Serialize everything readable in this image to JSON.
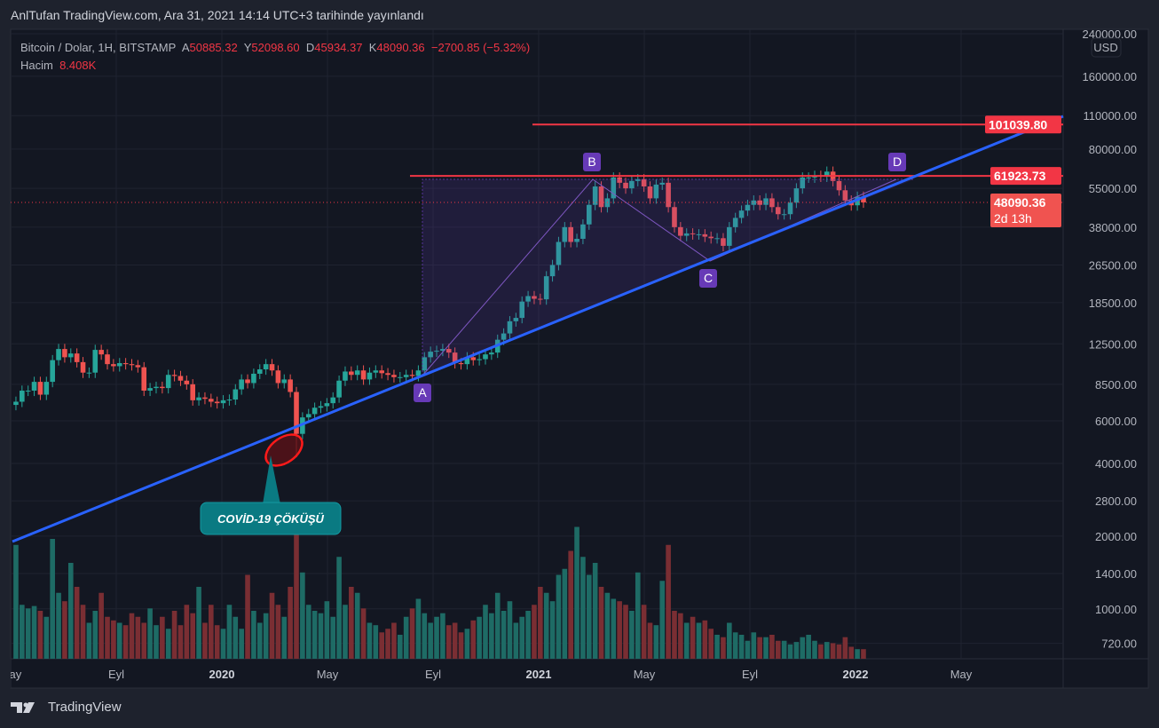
{
  "header": {
    "title": "AnlTufan TradingView.com, Ara 31, 2021 14:14 UTC+3 tarihinde yayınlandı"
  },
  "legend": {
    "symbol": "Bitcoin / Dolar, 1H, BITSTAMP",
    "o_label": "A",
    "o": "50885.32",
    "h_label": "Y",
    "h": "52098.60",
    "l_label": "D",
    "l": "45934.37",
    "c_label": "K",
    "c": "48090.36",
    "change": "−2700.85 (−5.32%)",
    "volume_label": "Hacim",
    "volume": "8.408K"
  },
  "footer": {
    "brand": "TradingView"
  },
  "annotations": {
    "covid": "COVİD-19 ÇÖKÜŞÜ",
    "points": [
      "A",
      "B",
      "C",
      "D"
    ]
  },
  "colors": {
    "up": "#26a69a",
    "down": "#ef5350",
    "trend": "#2962ff",
    "level": "#f23645",
    "pattern": "#673ab7"
  },
  "chart_data": {
    "type": "candlestick",
    "title": "Bitcoin / Dolar, 1H, BITSTAMP",
    "currency": "USD",
    "yscale": "log",
    "ylim": [
      1850,
      260000
    ],
    "price_ticks": [
      240000,
      160000,
      110000,
      80000,
      55000,
      38000,
      26500,
      18500,
      12500,
      8500,
      6000,
      4000,
      2800,
      2000,
      1400,
      1000,
      720
    ],
    "price_tick_labels": [
      "240000.00",
      "160000.00",
      "110000.00",
      "80000.00",
      "55000.00",
      "38000.00",
      "26500.00",
      "18500.00",
      "12500.00",
      "8500.00",
      "6000.00",
      "4000.00",
      "2800.00",
      "2000.00",
      "1400.00",
      "1000.00",
      "720.00"
    ],
    "time_labels": [
      {
        "t": "May",
        "bold": false,
        "m": 4
      },
      {
        "t": "Eyl",
        "bold": false,
        "m": 8
      },
      {
        "t": "2020",
        "bold": true,
        "m": 12
      },
      {
        "t": "May",
        "bold": false,
        "m": 16
      },
      {
        "t": "Eyl",
        "bold": false,
        "m": 20
      },
      {
        "t": "2021",
        "bold": true,
        "m": 24
      },
      {
        "t": "May",
        "bold": false,
        "m": 28
      },
      {
        "t": "Eyl",
        "bold": false,
        "m": 32
      },
      {
        "t": "2022",
        "bold": true,
        "m": 36
      },
      {
        "t": "May",
        "bold": false,
        "m": 40
      }
    ],
    "start_month": 4.2,
    "weeks_per_month": 4.33,
    "closes": [
      7200,
      8000,
      8000,
      8700,
      7700,
      8700,
      10700,
      11900,
      11000,
      11400,
      10500,
      9500,
      9500,
      11800,
      11300,
      10300,
      10100,
      10400,
      10300,
      10200,
      10000,
      8000,
      8200,
      8300,
      8200,
      9300,
      9200,
      8800,
      8500,
      7300,
      7500,
      7400,
      7200,
      7100,
      7300,
      7350,
      8100,
      8900,
      8600,
      9400,
      9800,
      10300,
      9700,
      8600,
      8900,
      7900,
      5300,
      6200,
      6400,
      6800,
      6900,
      7100,
      7500,
      8800,
      9600,
      9300,
      9700,
      8900,
      9500,
      9700,
      9450,
      9300,
      9100,
      9100,
      9300,
      9200,
      9700,
      11000,
      11600,
      11700,
      11900,
      11500,
      10400,
      10300,
      11000,
      10700,
      10800,
      11300,
      11500,
      13000,
      13800,
      15500,
      16000,
      18700,
      19700,
      19200,
      19100,
      23800,
      26500,
      33000,
      38000,
      33000,
      34000,
      39000,
      47000,
      56000,
      46000,
      50000,
      61000,
      58000,
      55000,
      59000,
      60000,
      56000,
      50000,
      57000,
      58000,
      46000,
      38000,
      35000,
      35800,
      35500,
      35500,
      34700,
      34200,
      34200,
      31800,
      38000,
      41500,
      44500,
      47000,
      49000,
      47000,
      50000,
      46000,
      43000,
      43000,
      48000,
      55000,
      61000,
      61000,
      62000,
      61500,
      64500,
      59000,
      54000,
      49000,
      46800,
      50800,
      48090
    ],
    "volumes": [
      95,
      45,
      42,
      44,
      40,
      35,
      100,
      55,
      48,
      80,
      60,
      45,
      30,
      40,
      55,
      35,
      32,
      30,
      28,
      38,
      35,
      30,
      42,
      28,
      35,
      25,
      40,
      28,
      45,
      38,
      60,
      30,
      45,
      28,
      25,
      45,
      35,
      25,
      70,
      40,
      30,
      38,
      55,
      45,
      35,
      60,
      110,
      72,
      45,
      40,
      38,
      48,
      35,
      85,
      45,
      60,
      55,
      42,
      30,
      28,
      22,
      25,
      30,
      20,
      35,
      42,
      50,
      38,
      30,
      35,
      38,
      28,
      30,
      22,
      25,
      32,
      35,
      45,
      38,
      55,
      40,
      48,
      30,
      35,
      40,
      45,
      60,
      55,
      48,
      70,
      75,
      90,
      110,
      85,
      70,
      80,
      60,
      55,
      50,
      48,
      45,
      40,
      72,
      45,
      30,
      28,
      65,
      95,
      40,
      38,
      30,
      35,
      30,
      32,
      25,
      20,
      18,
      30,
      22,
      20,
      15,
      22,
      18,
      18,
      20,
      15,
      15,
      12,
      14,
      18,
      20,
      15,
      12,
      14,
      13,
      12,
      18,
      10,
      8,
      8
    ],
    "price_labels": [
      {
        "value": "101039.80",
        "price": 101039.8
      },
      {
        "value": "61923.73",
        "price": 61923.73
      },
      {
        "value": "48090.36",
        "price": 48090.36,
        "countdown": "2d 13h"
      }
    ]
  }
}
